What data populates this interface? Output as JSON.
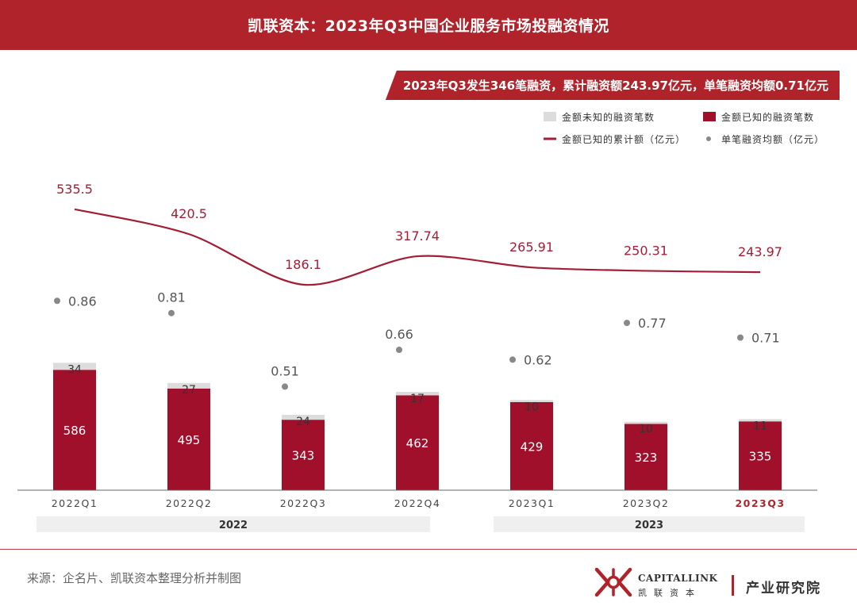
{
  "header": {
    "title": "凯联资本：2023年Q3中国企业服务市场投融资情况"
  },
  "summary": {
    "text": "2023年Q3发生346笔融资，累计融资额243.97亿元，单笔融资均额0.71亿元"
  },
  "colors": {
    "brand_red": "#b0232a",
    "bar_known": "#a0102b",
    "bar_unknown": "#dcdcdc",
    "line": "#a31d35",
    "avg_dot": "#888888",
    "year_band": "#efefef"
  },
  "chart_data": {
    "type": "bar",
    "categories": [
      "2022Q1",
      "2022Q2",
      "2022Q3",
      "2022Q4",
      "2023Q1",
      "2023Q2",
      "2023Q3"
    ],
    "highlight_category": "2023Q3",
    "year_groups": [
      {
        "label": "2022",
        "categories": [
          "2022Q1",
          "2022Q2",
          "2022Q3",
          "2022Q4"
        ]
      },
      {
        "label": "2023",
        "categories": [
          "2023Q1",
          "2023Q2",
          "2023Q3"
        ]
      }
    ],
    "series": [
      {
        "name": "金额已知的融资笔数",
        "kind": "stacked-bar",
        "values": [
          586,
          495,
          343,
          462,
          429,
          323,
          335
        ]
      },
      {
        "name": "金额未知的融资笔数",
        "kind": "stacked-bar",
        "values": [
          34,
          27,
          24,
          17,
          10,
          10,
          11
        ]
      },
      {
        "name": "金额已知的累计额（亿元）",
        "kind": "line",
        "values": [
          535.5,
          420.5,
          186.1,
          317.74,
          265.91,
          250.31,
          243.97
        ],
        "labels": [
          "535.5",
          "420.5",
          "186.1",
          "317.74",
          "265.91",
          "250.31",
          "243.97"
        ]
      },
      {
        "name": "单笔融资均额（亿元）",
        "kind": "scatter",
        "values": [
          0.86,
          0.81,
          0.51,
          0.66,
          0.62,
          0.77,
          0.71
        ],
        "labels": [
          "0.86",
          "0.81",
          "0.51",
          "0.66",
          "0.62",
          "0.77",
          "0.71"
        ]
      }
    ],
    "legend": {
      "placement": "top-right",
      "items": [
        "金额未知的融资笔数",
        "金额已知的融资笔数",
        "金额已知的累计额（亿元）",
        "单笔融资均额（亿元）"
      ]
    }
  },
  "footer": {
    "source": "来源：企名片、凯联资本整理分析并制图",
    "brand_en": "CAPITALLINK",
    "brand_cn": "凯联资本",
    "department": "产业研究院"
  }
}
